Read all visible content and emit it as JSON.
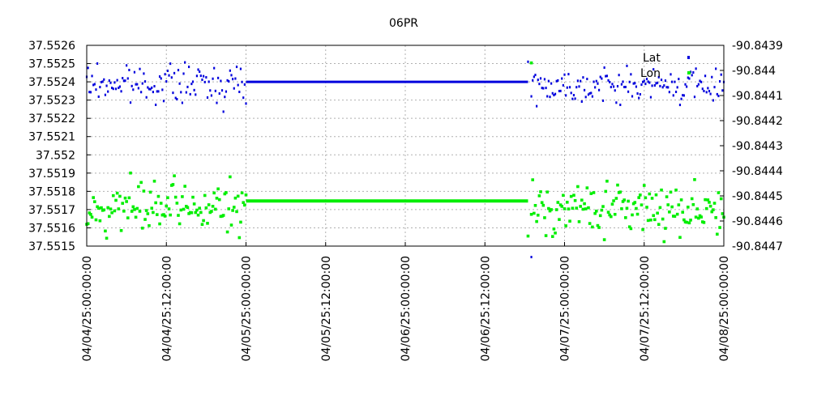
{
  "chart_data": {
    "type": "scatter",
    "title": "06PR",
    "x_ticks": [
      "04/04/25:00:00:00",
      "04/04/25:12:00:00",
      "04/05/25:00:00:00",
      "04/05/25:12:00:00",
      "04/06/25:00:00:00",
      "04/06/25:12:00:00",
      "04/07/25:00:00:00",
      "04/07/25:12:00:00",
      "04/08/25:00:00:00"
    ],
    "x_tick_hours": [
      0,
      12,
      24,
      36,
      48,
      60,
      72,
      84,
      96
    ],
    "xlim_hours": [
      0,
      96
    ],
    "y_left_ticks": [
      "37.5526",
      "37.5525",
      "37.5524",
      "37.5523",
      "37.5522",
      "37.5521",
      "37.552",
      "37.5519",
      "37.5518",
      "37.5517",
      "37.5516",
      "37.5515"
    ],
    "ylim_left": [
      37.5515,
      37.5526
    ],
    "y_right_ticks": [
      "-90.8439",
      "-90.844",
      "-90.8441",
      "-90.8442",
      "-90.8443",
      "-90.8444",
      "-90.8445",
      "-90.8446",
      "-90.8447"
    ],
    "ylim_right": [
      -90.8447,
      -90.8439
    ],
    "right_axis_inverted": true,
    "grid": true,
    "legend_position": "top-right",
    "series": [
      {
        "name": "Lat",
        "axis": "left",
        "color": "#0000dd",
        "noisy_segments": [
          [
            0,
            24,
            37.55239,
            7e-05
          ],
          [
            67,
            96,
            37.55238,
            6e-05
          ]
        ],
        "flat_segment": [
          24,
          66.5,
          37.5524
        ],
        "outliers": [
          [
            66.5,
            37.55251
          ],
          [
            67,
            37.55144
          ]
        ]
      },
      {
        "name": "Lon",
        "axis": "right",
        "color": "#00ee00",
        "noisy_segments": [
          [
            0,
            24,
            -90.84455,
            7e-05
          ],
          [
            67,
            96,
            -90.84455,
            7e-05
          ]
        ],
        "flat_segment": [
          24,
          66.5,
          -90.84452
        ],
        "outliers": [
          [
            66.5,
            -90.84466
          ],
          [
            67,
            -90.84397
          ]
        ]
      }
    ]
  }
}
